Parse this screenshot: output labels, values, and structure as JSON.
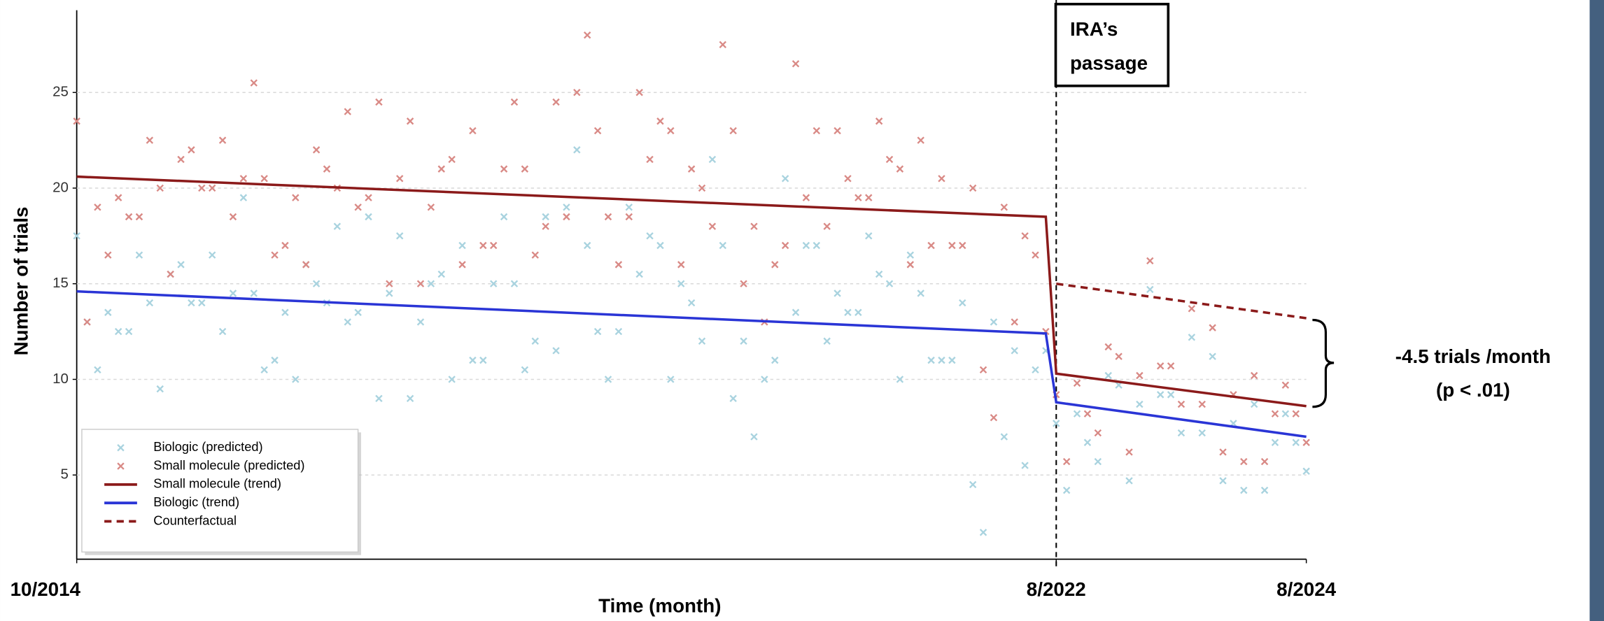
{
  "chart_data": {
    "type": "scatter",
    "xlabel": "Time (month)",
    "ylabel": "Number of trials",
    "xlim": [
      "2014-10",
      "2024-08"
    ],
    "xticks": [
      {
        "value": "2014-10",
        "label": "10/2014"
      },
      {
        "value": "2022-08",
        "label": "8/2022"
      },
      {
        "value": "2024-08",
        "label": "8/2024"
      }
    ],
    "ylim": [
      0.6,
      29.3
    ],
    "yticks": [
      5,
      10,
      15,
      20,
      25
    ],
    "grid": true,
    "legend": "lower left",
    "x": [
      "2014-10",
      "2014-11",
      "2014-12",
      "2015-01",
      "2015-02",
      "2015-03",
      "2015-04",
      "2015-05",
      "2015-06",
      "2015-07",
      "2015-08",
      "2015-09",
      "2015-10",
      "2015-11",
      "2015-12",
      "2016-01",
      "2016-02",
      "2016-03",
      "2016-04",
      "2016-05",
      "2016-06",
      "2016-07",
      "2016-08",
      "2016-09",
      "2016-10",
      "2016-11",
      "2016-12",
      "2017-01",
      "2017-02",
      "2017-03",
      "2017-04",
      "2017-05",
      "2017-06",
      "2017-07",
      "2017-08",
      "2017-09",
      "2017-10",
      "2017-11",
      "2017-12",
      "2018-01",
      "2018-02",
      "2018-03",
      "2018-04",
      "2018-05",
      "2018-06",
      "2018-07",
      "2018-08",
      "2018-09",
      "2018-10",
      "2018-11",
      "2018-12",
      "2019-01",
      "2019-02",
      "2019-03",
      "2019-04",
      "2019-05",
      "2019-06",
      "2019-07",
      "2019-08",
      "2019-09",
      "2019-10",
      "2019-11",
      "2019-12",
      "2020-01",
      "2020-02",
      "2020-03",
      "2020-04",
      "2020-05",
      "2020-06",
      "2020-07",
      "2020-08",
      "2020-09",
      "2020-10",
      "2020-11",
      "2020-12",
      "2021-01",
      "2021-02",
      "2021-03",
      "2021-04",
      "2021-05",
      "2021-06",
      "2021-07",
      "2021-08",
      "2021-09",
      "2021-10",
      "2021-11",
      "2021-12",
      "2022-01",
      "2022-02",
      "2022-03",
      "2022-04",
      "2022-05",
      "2022-06",
      "2022-07",
      "2022-08",
      "2022-09",
      "2022-10",
      "2022-11",
      "2022-12",
      "2023-01",
      "2023-02",
      "2023-03",
      "2023-04",
      "2023-05",
      "2023-06",
      "2023-07",
      "2023-08",
      "2023-09",
      "2023-10",
      "2023-11",
      "2023-12",
      "2024-01",
      "2024-02",
      "2024-03",
      "2024-04",
      "2024-05",
      "2024-06",
      "2024-07",
      "2024-08"
    ],
    "series": [
      {
        "name": "Biologic (predicted)",
        "kind": "scatter",
        "color": "#a9d3df",
        "values": [
          17.5,
          13,
          10.5,
          13.5,
          12.5,
          12.5,
          16.5,
          14,
          9.5,
          15.5,
          16,
          14,
          14,
          16.5,
          12.5,
          14.5,
          19.5,
          14.5,
          10.5,
          11,
          13.5,
          10,
          16,
          15,
          14,
          18,
          13,
          13.5,
          18.5,
          9,
          14.5,
          17.5,
          9,
          13,
          15,
          15.5,
          10,
          17,
          11,
          11,
          15,
          18.5,
          15,
          10.5,
          12,
          18.5,
          11.5,
          19,
          22,
          17,
          12.5,
          10,
          12.5,
          19,
          15.5,
          17.5,
          17,
          10,
          15,
          14,
          12,
          21.5,
          17,
          9,
          12,
          7,
          10,
          11,
          20.5,
          13.5,
          17,
          17,
          12,
          14.5,
          13.5,
          13.5,
          17.5,
          15.5,
          15,
          10,
          16.5,
          14.5,
          11,
          11,
          11,
          14,
          4.5,
          2,
          13,
          7,
          11.5,
          5.5,
          10.5,
          11.5,
          7.7,
          4.2,
          8.2,
          6.7,
          5.7,
          10.2,
          9.7,
          4.7,
          8.7,
          14.7,
          9.2,
          9.2,
          7.2,
          12.2,
          7.2,
          11.2,
          4.7,
          7.7,
          4.2,
          8.7,
          4.2,
          6.7,
          8.2,
          6.7,
          5.2
        ]
      },
      {
        "name": "Small molecule (predicted)",
        "kind": "scatter",
        "color": "#d98a86",
        "values": [
          23.5,
          13,
          19,
          16.5,
          19.5,
          18.5,
          18.5,
          22.5,
          20,
          15.5,
          21.5,
          22,
          20,
          20,
          22.5,
          18.5,
          20.5,
          25.5,
          20.5,
          16.5,
          17,
          19.5,
          16,
          22,
          21,
          20,
          24,
          19,
          19.5,
          24.5,
          15,
          20.5,
          23.5,
          15,
          19,
          21,
          21.5,
          16,
          23,
          17,
          17,
          21,
          24.5,
          21,
          16.5,
          18,
          24.5,
          18.5,
          25,
          28,
          23,
          18.5,
          16,
          18.5,
          25,
          21.5,
          23.5,
          23,
          16,
          21,
          20,
          18,
          27.5,
          23,
          15,
          18,
          13,
          16,
          17,
          26.5,
          19.5,
          23,
          18,
          23,
          20.5,
          19.5,
          19.5,
          23.5,
          21.5,
          21,
          16,
          22.5,
          17,
          20.5,
          17,
          17,
          20,
          10.5,
          8,
          19,
          13,
          17.5,
          16.5,
          12.5,
          9.2,
          5.7,
          9.8,
          8.2,
          7.2,
          11.7,
          11.2,
          6.2,
          10.2,
          16.2,
          10.7,
          10.7,
          8.7,
          13.7,
          8.7,
          12.7,
          6.2,
          9.2,
          5.7,
          10.2,
          5.7,
          8.2,
          9.7,
          8.2,
          6.7
        ]
      },
      {
        "name": "Small molecule (trend)",
        "kind": "line",
        "color": "#8b1a1a",
        "x": [
          "2014-10",
          "2022-07",
          "2022-08",
          "2024-08"
        ],
        "values": [
          20.6,
          18.5,
          10.3,
          8.6
        ]
      },
      {
        "name": "Biologic (trend)",
        "kind": "line",
        "color": "#2a35d6",
        "x": [
          "2014-10",
          "2022-07",
          "2022-08",
          "2024-08"
        ],
        "values": [
          14.6,
          12.4,
          8.8,
          7.0
        ]
      },
      {
        "name": "Counterfactual",
        "kind": "line",
        "dashed": true,
        "color": "#8b1a1a",
        "x": [
          "2022-08",
          "2024-08"
        ],
        "values": [
          15.0,
          13.2
        ]
      }
    ],
    "event_x": "2022-08",
    "event_label": [
      "IRA’s",
      "passage"
    ],
    "annotation": [
      "-4.5 trials /month",
      "(p < .01)"
    ]
  }
}
